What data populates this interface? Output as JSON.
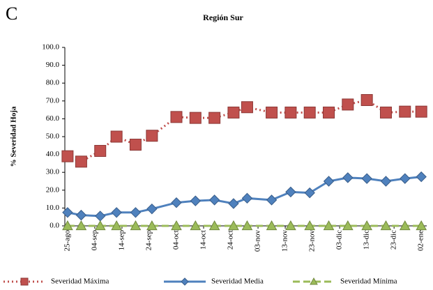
{
  "chart_data": {
    "type": "line",
    "panel_label": "C",
    "title": "Región Sur",
    "y_label": "% Severidad Hoja",
    "x": [
      0,
      5,
      12,
      18,
      25,
      31,
      40,
      47,
      54,
      61,
      66,
      75,
      82,
      89,
      96,
      103,
      110,
      117,
      124,
      130
    ],
    "xlim": [
      -1,
      132
    ],
    "xticks": [
      {
        "value": 0,
        "label": "25-ago"
      },
      {
        "value": 10,
        "label": "04-sep"
      },
      {
        "value": 20,
        "label": "14-sep"
      },
      {
        "value": 30,
        "label": "24-sep"
      },
      {
        "value": 40,
        "label": "04-oct"
      },
      {
        "value": 50,
        "label": "14-oct"
      },
      {
        "value": 60,
        "label": "24-oct"
      },
      {
        "value": 70,
        "label": "03-nov"
      },
      {
        "value": 80,
        "label": "13-nov"
      },
      {
        "value": 90,
        "label": "23-nov"
      },
      {
        "value": 100,
        "label": "03-dic"
      },
      {
        "value": 110,
        "label": "13-dic"
      },
      {
        "value": 120,
        "label": "23-dic"
      },
      {
        "value": 130,
        "label": "02-ene"
      }
    ],
    "ylim": [
      0,
      100
    ],
    "yticks": [
      {
        "value": 0,
        "label": "0.0"
      },
      {
        "value": 10,
        "label": "10.0"
      },
      {
        "value": 20,
        "label": "20.0"
      },
      {
        "value": 30,
        "label": "30.0"
      },
      {
        "value": 40,
        "label": "40.0"
      },
      {
        "value": 50,
        "label": "50.0"
      },
      {
        "value": 60,
        "label": "60.0"
      },
      {
        "value": 70,
        "label": "70.0"
      },
      {
        "value": 80,
        "label": "80.0"
      },
      {
        "value": 90,
        "label": "90.0"
      },
      {
        "value": 100,
        "label": "100.0"
      }
    ],
    "grid": false,
    "legend": "bottom",
    "series": [
      {
        "name": "Severidad Máxima",
        "color": "#c0504d",
        "dash": "dotted",
        "marker": "square",
        "values": [
          39,
          36,
          42,
          50,
          45.5,
          50.5,
          61,
          60.5,
          60.5,
          63.5,
          66.5,
          63.5,
          63.5,
          63.5,
          63.5,
          68,
          70.5,
          63.5,
          64,
          64
        ]
      },
      {
        "name": "Severidad Media",
        "color": "#4f81bd",
        "dash": "solid",
        "marker": "diamond",
        "values": [
          7.5,
          6,
          5.5,
          7.5,
          7.5,
          9.5,
          13,
          14,
          14.5,
          12.5,
          15.5,
          14.5,
          19,
          18.5,
          25,
          27,
          26.5,
          25,
          26.5,
          27.5
        ]
      },
      {
        "name": "Severidad Mínima",
        "color": "#9bbb59",
        "dash": "dashed",
        "marker": "triangle",
        "values": [
          0,
          0,
          0,
          0,
          0,
          0,
          0,
          0,
          0,
          0,
          0,
          0,
          0,
          0,
          0,
          0,
          0,
          0,
          0,
          0
        ]
      }
    ]
  }
}
